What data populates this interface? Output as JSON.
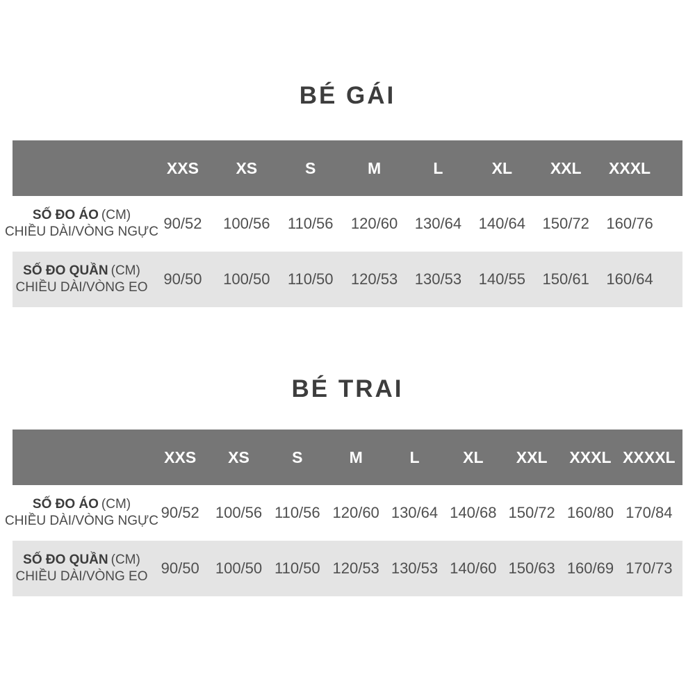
{
  "colors": {
    "header_bg": "#767676",
    "header_text": "#ffffff",
    "alt_row_bg": "#e4e4e4",
    "title_text": "#3d3d3d",
    "value_text": "#4f4f4f"
  },
  "tables": [
    {
      "title": "BÉ GÁI",
      "sizes": [
        "XXS",
        "XS",
        "S",
        "M",
        "L",
        "XL",
        "XXL",
        "XXXL"
      ],
      "rows": [
        {
          "label_bold": "SỐ ĐO ÁO",
          "label_unit": "(CM)",
          "label_sub": "CHIỀU DÀI/VÒNG NGỰC",
          "values": [
            "90/52",
            "100/56",
            "110/56",
            "120/60",
            "130/64",
            "140/64",
            "150/72",
            "160/76"
          ]
        },
        {
          "label_bold": "SỐ ĐO QUẦN",
          "label_unit": "(CM)",
          "label_sub": "CHIỀU DÀI/VÒNG EO",
          "values": [
            "90/50",
            "100/50",
            "110/50",
            "120/53",
            "130/53",
            "140/55",
            "150/61",
            "160/64"
          ]
        }
      ]
    },
    {
      "title": "BÉ TRAI",
      "sizes": [
        "XXS",
        "XS",
        "S",
        "M",
        "L",
        "XL",
        "XXL",
        "XXXL",
        "XXXXL"
      ],
      "rows": [
        {
          "label_bold": "SỐ ĐO ÁO",
          "label_unit": "(CM)",
          "label_sub": "CHIỀU DÀI/VÒNG NGỰC",
          "values": [
            "90/52",
            "100/56",
            "110/56",
            "120/60",
            "130/64",
            "140/68",
            "150/72",
            "160/80",
            "170/84"
          ]
        },
        {
          "label_bold": "SỐ ĐO QUẦN",
          "label_unit": "(CM)",
          "label_sub": "CHIỀU DÀI/VÒNG EO",
          "values": [
            "90/50",
            "100/50",
            "110/50",
            "120/53",
            "130/53",
            "140/60",
            "150/63",
            "160/69",
            "170/73"
          ]
        }
      ]
    }
  ]
}
